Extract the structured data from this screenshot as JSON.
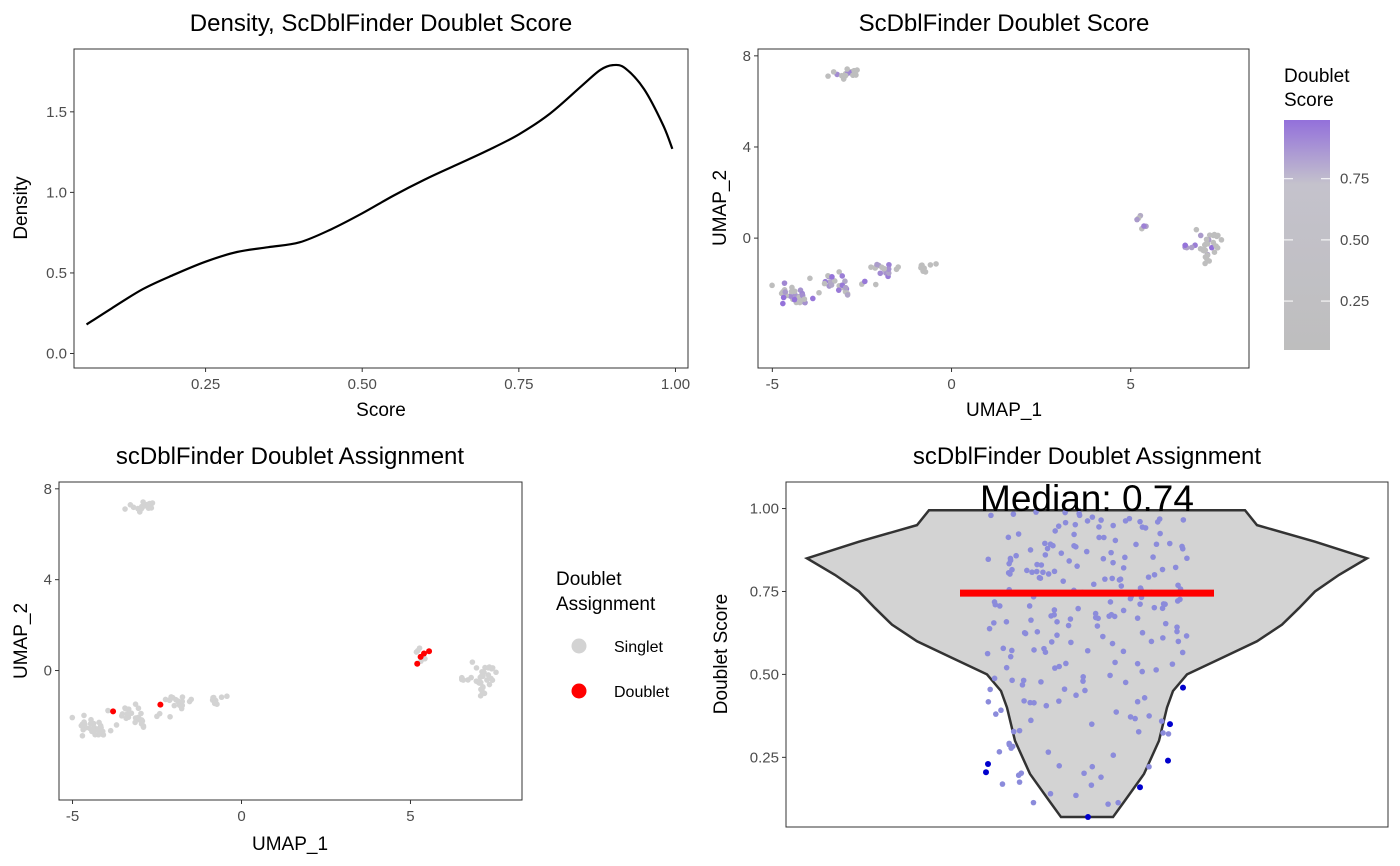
{
  "chart_data": [
    {
      "type": "line",
      "title": "Density, ScDblFinder Doublet Score",
      "xlabel": "Score",
      "ylabel": "Density",
      "xlim": [
        0.04,
        1.02
      ],
      "ylim": [
        -0.09,
        1.89
      ],
      "xticks": [
        "0.25",
        "0.50",
        "0.75",
        "1.00"
      ],
      "yticks": [
        "0.0",
        "0.5",
        "1.0",
        "1.5"
      ],
      "x": [
        0.06,
        0.1,
        0.15,
        0.2,
        0.25,
        0.3,
        0.35,
        0.4,
        0.45,
        0.5,
        0.55,
        0.6,
        0.65,
        0.7,
        0.75,
        0.8,
        0.85,
        0.88,
        0.9,
        0.92,
        0.95,
        0.98,
        0.995
      ],
      "values": [
        0.18,
        0.28,
        0.4,
        0.49,
        0.57,
        0.63,
        0.66,
        0.69,
        0.77,
        0.87,
        0.98,
        1.08,
        1.17,
        1.26,
        1.36,
        1.49,
        1.66,
        1.76,
        1.79,
        1.77,
        1.64,
        1.42,
        1.27
      ],
      "color": "#000000"
    },
    {
      "type": "scatter",
      "title": "ScDblFinder Doublet Score",
      "xlabel": "UMAP_1",
      "ylabel": "UMAP_2",
      "xlim": [
        -5.4,
        8.3
      ],
      "ylim": [
        -5.7,
        8.3
      ],
      "xticks": [
        "-5",
        "0",
        "5"
      ],
      "yticks": [
        "0",
        "4",
        "8"
      ],
      "legend": {
        "title_line1": "Doublet",
        "title_line2": "Score",
        "ticks": [
          "0.75",
          "0.50",
          "0.25"
        ],
        "position": "right"
      },
      "color_low": "#bebebe",
      "color_high": "#9370db"
    },
    {
      "type": "scatter",
      "title": "scDblFinder Doublet Assignment",
      "xlabel": "UMAP_1",
      "ylabel": "UMAP_2",
      "xlim": [
        -5.4,
        8.3
      ],
      "ylim": [
        -5.7,
        8.3
      ],
      "xticks": [
        "-5",
        "0",
        "5"
      ],
      "yticks": [
        "0",
        "4",
        "8"
      ],
      "legend": {
        "title_line1": "Doublet",
        "title_line2": "Assignment",
        "position": "right"
      },
      "series": [
        {
          "name": "Singlet",
          "color": "#d3d3d3"
        },
        {
          "name": "Doublet",
          "color": "#ff0000"
        }
      ]
    },
    {
      "type": "violin",
      "title": "scDblFinder Doublet Assignment",
      "xlabel": "",
      "ylabel": "Doublet Score",
      "ylim": [
        0.04,
        1.08
      ],
      "yticks": [
        "0.25",
        "0.50",
        "0.75",
        "1.00"
      ],
      "annotation": "Median: 0.74",
      "median": 0.745,
      "min": 0.07,
      "max": 0.995,
      "fill": "#d3d3d3",
      "point_color": "#8b8bdb",
      "outlier_color": "#0000cd",
      "median_color": "#ff0000"
    }
  ]
}
